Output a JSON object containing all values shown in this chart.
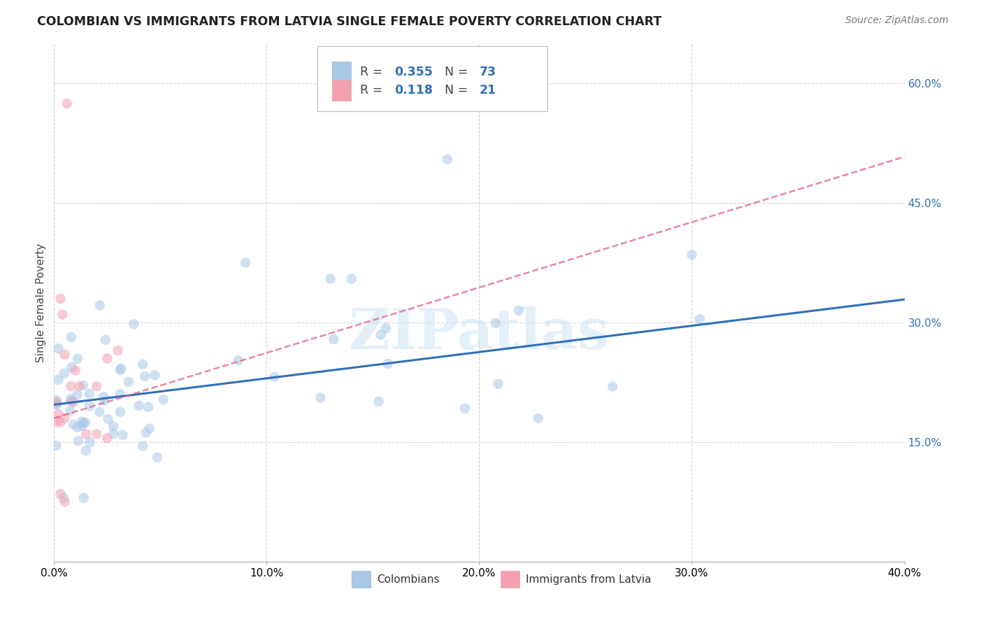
{
  "title": "COLOMBIAN VS IMMIGRANTS FROM LATVIA SINGLE FEMALE POVERTY CORRELATION CHART",
  "source": "Source: ZipAtlas.com",
  "ylabel": "Single Female Poverty",
  "watermark": "ZIPatlas",
  "xlim": [
    0.0,
    0.4
  ],
  "ylim": [
    0.0,
    0.65
  ],
  "xticks": [
    0.0,
    0.1,
    0.2,
    0.3,
    0.4
  ],
  "xtick_labels": [
    "0.0%",
    "10.0%",
    "20.0%",
    "30.0%",
    "40.0%"
  ],
  "yticks_right": [
    0.15,
    0.3,
    0.45,
    0.6
  ],
  "ytick_labels_right": [
    "15.0%",
    "30.0%",
    "45.0%",
    "60.0%"
  ],
  "colombian_color": "#a8c8e8",
  "latvian_color": "#f4a0b0",
  "colombian_line_color": "#3070b8",
  "latvian_line_color": "#e06080",
  "legend_R_col": "0.355",
  "legend_N_col": "73",
  "legend_R_lat": "0.118",
  "legend_N_lat": "21",
  "legend_text_color": "#3070b8",
  "background_color": "#ffffff",
  "grid_color": "#d0d0d0",
  "title_fontsize": 12.5,
  "source_fontsize": 10,
  "axis_label_fontsize": 11,
  "marker_size": 110,
  "marker_alpha": 0.55,
  "col_line_intercept": 0.197,
  "col_line_slope": 0.33,
  "lat_line_intercept": 0.18,
  "lat_line_slope": 0.82
}
